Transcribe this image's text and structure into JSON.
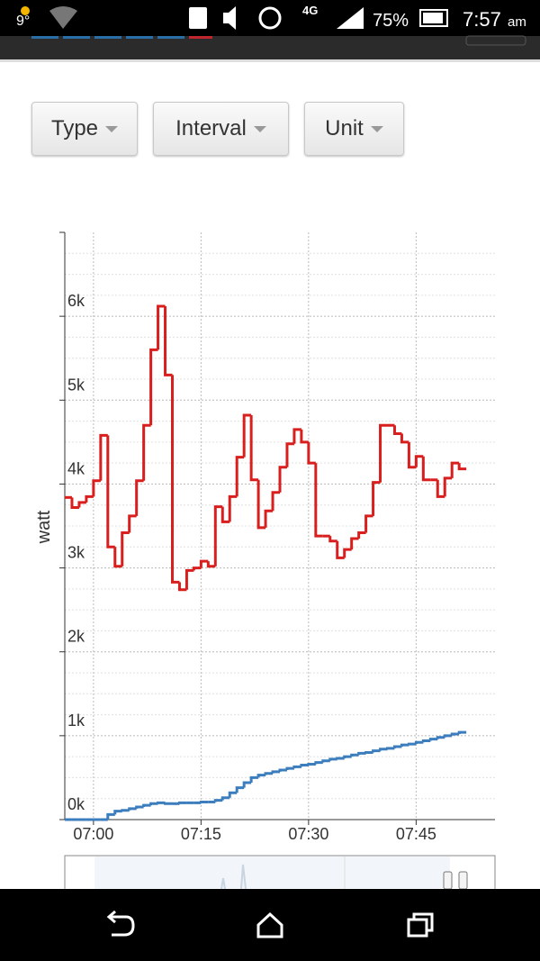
{
  "status_bar": {
    "temperature": "9°",
    "network": "4G",
    "battery": "75%",
    "time": "7:57",
    "period": "am"
  },
  "toolbar": {
    "buttons": [
      "Type",
      "Interval",
      "Unit"
    ]
  },
  "chart_data": {
    "type": "line",
    "step": true,
    "y_label": "watt",
    "x": [
      "06:56",
      "06:57",
      "06:58",
      "06:59",
      "07:00",
      "07:01",
      "07:02",
      "07:03",
      "07:04",
      "07:05",
      "07:06",
      "07:07",
      "07:08",
      "07:09",
      "07:10",
      "07:11",
      "07:12",
      "07:13",
      "07:14",
      "07:15",
      "07:16",
      "07:17",
      "07:18",
      "07:19",
      "07:20",
      "07:21",
      "07:22",
      "07:23",
      "07:24",
      "07:25",
      "07:26",
      "07:27",
      "07:28",
      "07:29",
      "07:30",
      "07:31",
      "07:32",
      "07:33",
      "07:34",
      "07:35",
      "07:36",
      "07:37",
      "07:38",
      "07:39",
      "07:40",
      "07:41",
      "07:42",
      "07:43",
      "07:44",
      "07:45",
      "07:46",
      "07:47",
      "07:48",
      "07:49",
      "07:50",
      "07:51"
    ],
    "xlim": [
      "06:56",
      "07:56"
    ],
    "xticks": [
      "07:00",
      "07:15",
      "07:30",
      "07:45"
    ],
    "ylim": [
      0,
      7000
    ],
    "yticks": [
      {
        "value": 0,
        "label": "0k"
      },
      {
        "value": 1000,
        "label": "1k"
      },
      {
        "value": 2000,
        "label": "2k"
      },
      {
        "value": 3000,
        "label": "3k"
      },
      {
        "value": 4000,
        "label": "4k"
      },
      {
        "value": 5000,
        "label": "5k"
      },
      {
        "value": 6000,
        "label": "6k"
      }
    ],
    "grid": true,
    "series": [
      {
        "color": "#d91e1e",
        "values": [
          3840,
          3720,
          3780,
          3850,
          4040,
          4580,
          3250,
          3020,
          3420,
          3620,
          4040,
          4700,
          5600,
          6120,
          5300,
          2830,
          2740,
          2970,
          3000,
          3080,
          3020,
          3730,
          3550,
          3850,
          4320,
          4820,
          4050,
          3480,
          3680,
          3900,
          4200,
          4480,
          4650,
          4500,
          4250,
          3380,
          3380,
          3320,
          3120,
          3220,
          3350,
          3420,
          3620,
          4020,
          4700,
          4700,
          4600,
          4500,
          4200,
          4330,
          4050,
          4050,
          3850,
          4070,
          4250,
          4180
        ]
      },
      {
        "color": "#3b7dbd",
        "values": [
          0,
          0,
          0,
          0,
          0,
          0,
          60,
          100,
          110,
          130,
          150,
          170,
          190,
          200,
          190,
          190,
          200,
          200,
          200,
          210,
          210,
          230,
          260,
          320,
          380,
          440,
          500,
          530,
          550,
          570,
          590,
          610,
          630,
          650,
          660,
          680,
          700,
          720,
          730,
          750,
          770,
          790,
          800,
          820,
          840,
          850,
          870,
          890,
          900,
          920,
          940,
          960,
          980,
          1000,
          1020,
          1040
        ]
      }
    ]
  }
}
